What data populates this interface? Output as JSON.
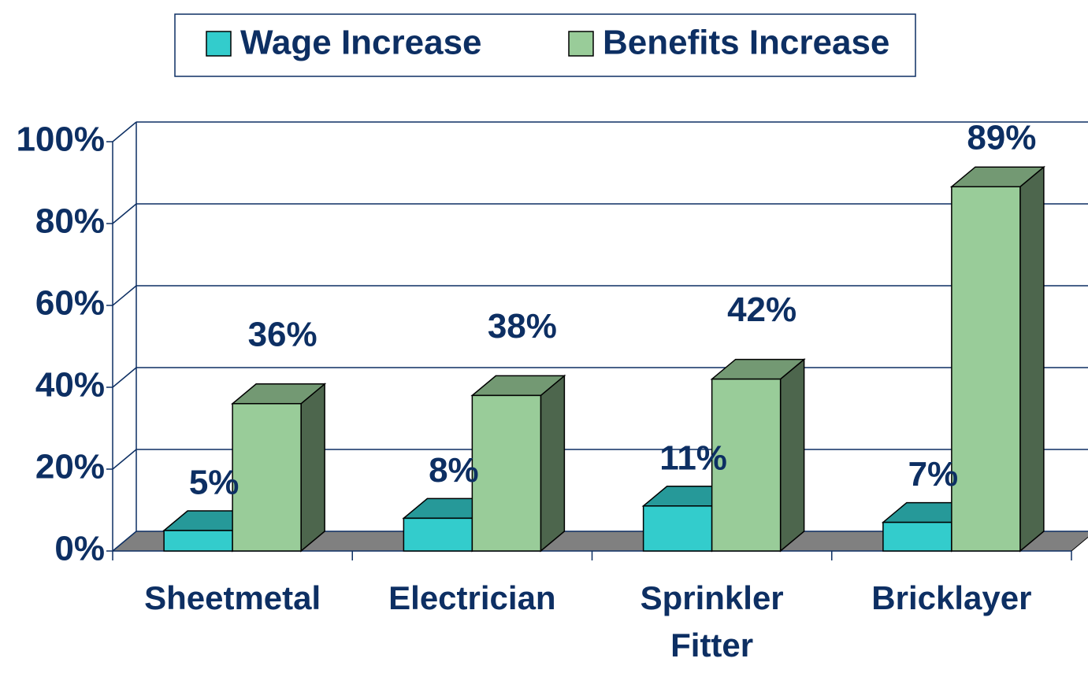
{
  "chart_data": {
    "type": "bar3d",
    "categories": [
      "Sheetmetal",
      "Electrician",
      "Sprinkler Fitter",
      "Bricklayer"
    ],
    "series": [
      {
        "name": "Wage Increase",
        "color": "#33cccc",
        "values": [
          5,
          8,
          11,
          7
        ],
        "value_labels": [
          "5%",
          "8%",
          "11%",
          "7%"
        ]
      },
      {
        "name": "Benefits Increase",
        "color": "#99cc99",
        "values": [
          36,
          38,
          42,
          89
        ],
        "value_labels": [
          "36%",
          "38%",
          "42%",
          "89%"
        ]
      }
    ],
    "ylim": [
      0,
      100
    ],
    "yticks": [
      {
        "value": 0,
        "label": "0%"
      },
      {
        "value": 20,
        "label": "20%"
      },
      {
        "value": 40,
        "label": "40%"
      },
      {
        "value": 60,
        "label": "60%"
      },
      {
        "value": 80,
        "label": "80%"
      },
      {
        "value": 100,
        "label": "100%"
      }
    ],
    "grid": true
  }
}
